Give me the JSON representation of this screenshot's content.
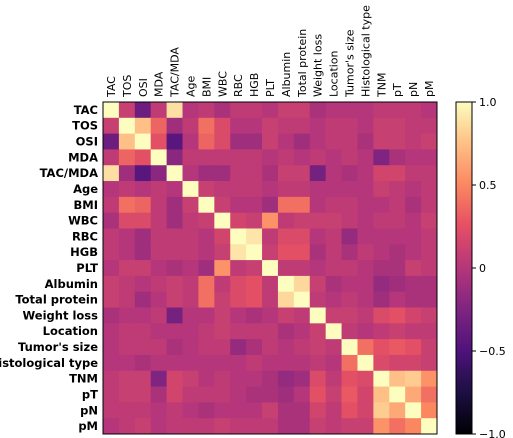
{
  "chart_data": {
    "type": "heatmap",
    "title": "",
    "variables": [
      "TAC",
      "TOS",
      "OSI",
      "MDA",
      "TAC/MDA",
      "Age",
      "BMI",
      "WBC",
      "RBC",
      "HGB",
      "PLT",
      "Albumin",
      "Total protein",
      "Weight loss",
      "Location",
      "Tumor's size",
      "Histological type",
      "TNM",
      "pT",
      "pN",
      "pM"
    ],
    "matrix": [
      [
        1.0,
        0.1,
        -0.35,
        0.05,
        0.88,
        0.0,
        0.05,
        -0.05,
        0.05,
        0.05,
        0.0,
        0.1,
        0.1,
        -0.05,
        0.0,
        0.0,
        0.0,
        0.05,
        0.05,
        0.05,
        0.0
      ],
      [
        0.1,
        1.0,
        0.75,
        0.35,
        -0.1,
        0.05,
        0.4,
        0.2,
        0.0,
        0.0,
        0.1,
        0.05,
        0.05,
        0.0,
        0.05,
        0.05,
        0.0,
        0.1,
        0.1,
        0.05,
        0.05
      ],
      [
        -0.35,
        0.75,
        1.0,
        0.25,
        -0.45,
        0.0,
        0.35,
        0.2,
        -0.1,
        -0.1,
        0.1,
        0.0,
        -0.1,
        0.0,
        0.05,
        0.05,
        -0.05,
        0.1,
        0.1,
        0.05,
        0.1
      ],
      [
        0.05,
        0.35,
        0.25,
        1.0,
        -0.2,
        0.05,
        0.05,
        0.05,
        0.05,
        0.05,
        0.0,
        0.05,
        0.0,
        0.05,
        0.0,
        0.05,
        0.0,
        -0.25,
        -0.05,
        0.0,
        0.0
      ],
      [
        0.88,
        -0.1,
        -0.45,
        -0.2,
        1.0,
        0.0,
        -0.1,
        -0.1,
        0.05,
        0.05,
        -0.05,
        0.1,
        0.1,
        -0.3,
        0.0,
        -0.05,
        0.0,
        0.15,
        0.15,
        0.05,
        0.05
      ],
      [
        0.0,
        0.05,
        0.0,
        0.05,
        0.0,
        1.0,
        0.1,
        0.05,
        0.05,
        0.05,
        0.0,
        0.05,
        0.05,
        0.0,
        0.0,
        0.0,
        0.0,
        0.1,
        0.05,
        0.0,
        0.05
      ],
      [
        0.05,
        0.4,
        0.35,
        0.05,
        -0.1,
        0.1,
        1.0,
        0.1,
        0.0,
        0.0,
        -0.1,
        0.4,
        0.4,
        0.0,
        0.05,
        0.05,
        0.0,
        0.0,
        0.05,
        -0.05,
        0.05
      ],
      [
        -0.05,
        0.2,
        0.2,
        0.05,
        -0.1,
        0.05,
        0.1,
        1.0,
        0.15,
        0.1,
        0.55,
        0.05,
        0.1,
        0.1,
        0.1,
        0.05,
        0.0,
        0.05,
        0.05,
        0.0,
        0.1
      ],
      [
        0.05,
        0.0,
        -0.1,
        0.05,
        0.05,
        0.05,
        0.0,
        0.15,
        1.0,
        0.9,
        0.05,
        0.2,
        0.2,
        0.0,
        0.05,
        -0.15,
        0.0,
        0.0,
        0.0,
        0.0,
        0.05
      ],
      [
        0.05,
        0.0,
        -0.1,
        0.05,
        0.05,
        0.05,
        0.0,
        0.1,
        0.9,
        1.0,
        0.1,
        0.25,
        0.25,
        -0.05,
        0.05,
        -0.05,
        0.05,
        0.0,
        -0.05,
        0.0,
        0.05
      ],
      [
        0.0,
        0.1,
        0.1,
        0.0,
        -0.05,
        0.0,
        -0.1,
        0.55,
        0.05,
        0.1,
        1.0,
        0.05,
        0.05,
        0.0,
        0.05,
        0.05,
        0.0,
        -0.05,
        -0.05,
        0.1,
        0.05
      ],
      [
        0.1,
        0.05,
        0.0,
        0.05,
        0.1,
        0.05,
        0.4,
        0.05,
        0.2,
        0.25,
        0.05,
        1.0,
        0.85,
        0.1,
        -0.05,
        0.0,
        0.0,
        -0.15,
        -0.1,
        -0.05,
        -0.05
      ],
      [
        0.1,
        0.05,
        -0.1,
        0.0,
        0.1,
        0.05,
        0.4,
        0.1,
        0.2,
        0.25,
        0.05,
        0.85,
        1.0,
        0.05,
        0.0,
        0.05,
        0.0,
        -0.1,
        0.0,
        -0.05,
        -0.05
      ],
      [
        -0.05,
        0.0,
        0.0,
        0.05,
        -0.3,
        0.0,
        0.0,
        0.1,
        0.0,
        -0.05,
        0.0,
        0.1,
        0.05,
        1.0,
        0.1,
        0.1,
        0.05,
        0.2,
        0.25,
        0.15,
        0.1
      ],
      [
        0.0,
        0.05,
        0.05,
        0.0,
        0.0,
        0.0,
        0.05,
        0.1,
        0.05,
        0.05,
        0.05,
        -0.05,
        0.0,
        0.1,
        1.0,
        0.05,
        0.0,
        0.05,
        0.1,
        0.05,
        0.05
      ],
      [
        0.0,
        0.05,
        0.05,
        0.05,
        -0.05,
        0.0,
        0.05,
        0.05,
        -0.15,
        -0.05,
        0.05,
        0.0,
        0.05,
        0.1,
        0.05,
        1.0,
        0.4,
        0.25,
        0.3,
        0.25,
        0.1
      ],
      [
        0.0,
        0.0,
        -0.05,
        0.0,
        0.0,
        0.0,
        0.0,
        0.0,
        0.0,
        0.05,
        0.0,
        0.0,
        0.0,
        0.05,
        0.0,
        0.4,
        1.0,
        0.2,
        0.15,
        0.15,
        0.1
      ],
      [
        0.05,
        0.1,
        0.1,
        -0.25,
        0.15,
        0.1,
        0.0,
        0.05,
        0.0,
        0.0,
        -0.05,
        -0.15,
        -0.1,
        0.2,
        0.05,
        0.25,
        0.2,
        1.0,
        0.75,
        0.8,
        0.55
      ],
      [
        0.05,
        0.1,
        0.1,
        -0.05,
        0.15,
        0.05,
        0.05,
        0.05,
        0.0,
        -0.05,
        -0.05,
        -0.1,
        0.0,
        0.25,
        0.1,
        0.3,
        0.15,
        0.75,
        1.0,
        0.65,
        0.4
      ],
      [
        0.05,
        0.05,
        0.05,
        0.0,
        0.05,
        0.0,
        -0.05,
        0.0,
        0.0,
        0.0,
        0.1,
        -0.05,
        -0.05,
        0.15,
        0.05,
        0.25,
        0.15,
        0.8,
        0.65,
        1.0,
        0.5
      ],
      [
        0.0,
        0.05,
        0.1,
        0.0,
        0.05,
        0.05,
        0.05,
        0.1,
        0.05,
        0.05,
        0.05,
        -0.05,
        -0.05,
        0.1,
        0.05,
        0.1,
        0.1,
        0.55,
        0.4,
        0.5,
        1.0
      ]
    ],
    "colorbar": {
      "colormap": "magma",
      "range": [
        -1.0,
        1.0
      ],
      "ticks": [
        1.0,
        0.5,
        0,
        -0.5,
        -1.0
      ],
      "tick_labels": [
        "1.0",
        "0.5",
        "0",
        "−0.5",
        "−1.0"
      ]
    },
    "xlabel": "",
    "ylabel": ""
  }
}
